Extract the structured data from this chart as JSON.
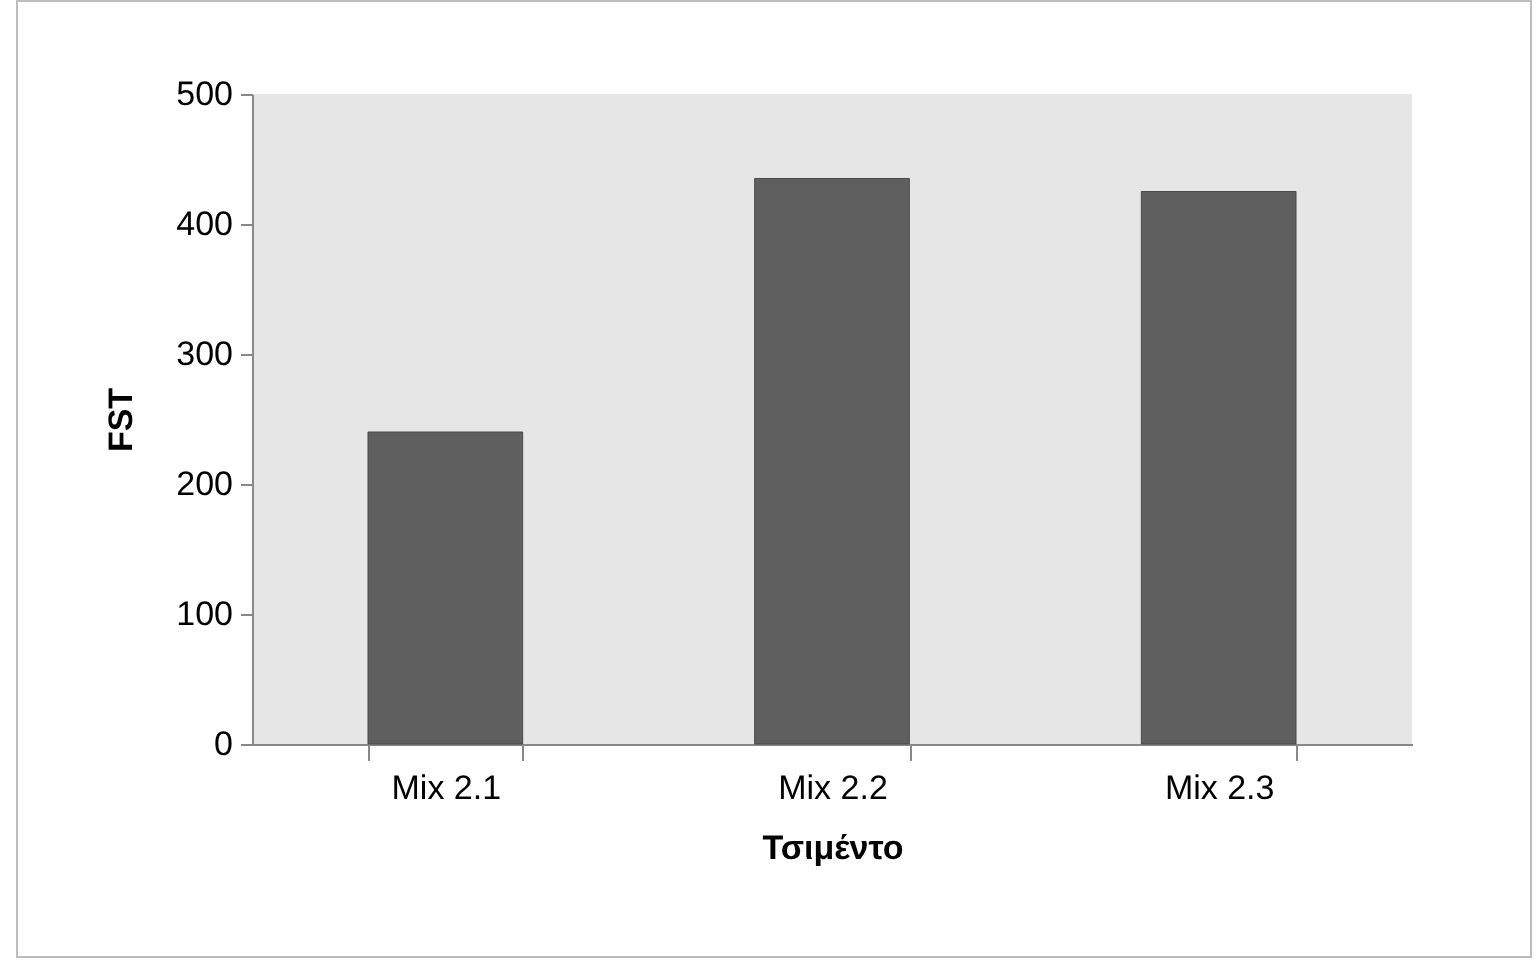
{
  "chart_data": {
    "type": "bar",
    "xlabel": "Τσιμέντο",
    "ylabel": "FST",
    "categories": [
      "Mix 2.1",
      "Mix 2.2",
      "Mix 2.3"
    ],
    "values": [
      240,
      435,
      425
    ],
    "color": "#5f5f5f",
    "ylim": [
      0,
      500
    ],
    "yticks": [
      0,
      100,
      200,
      300,
      400,
      500
    ],
    "grid": false,
    "legend": false
  }
}
